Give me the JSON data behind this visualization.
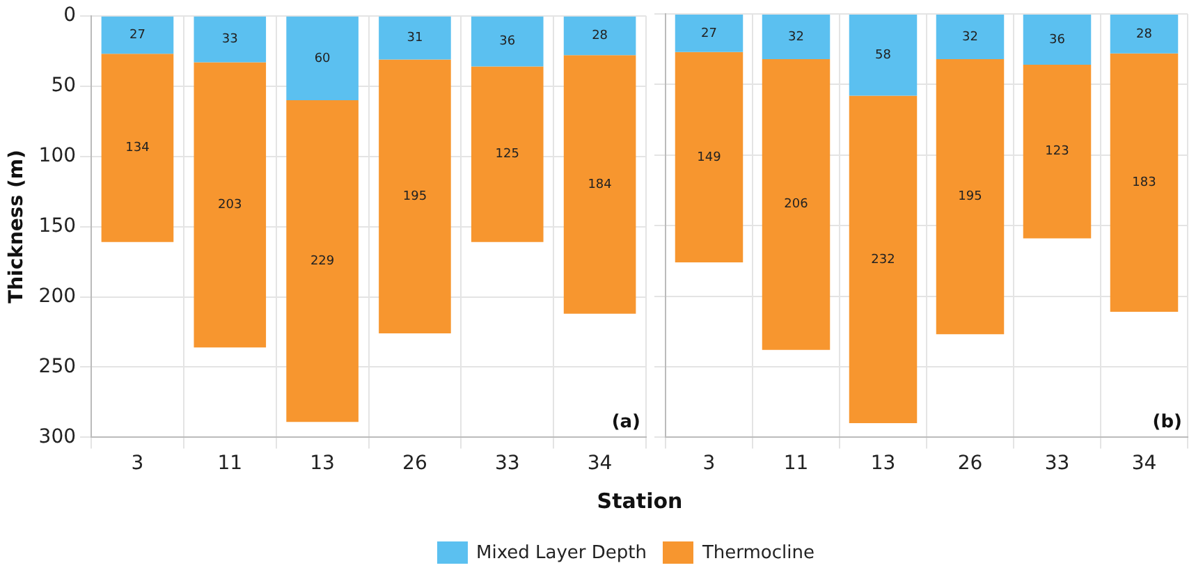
{
  "chart_data": [
    {
      "type": "bar",
      "stacked": true,
      "categories": [
        "3",
        "11",
        "13",
        "26",
        "33",
        "34"
      ],
      "ylabel": "Thickness (m)",
      "xlabel": "Station",
      "ylim": [
        300,
        0
      ],
      "yticks": [
        0,
        50,
        100,
        150,
        200,
        250,
        300
      ],
      "grid": true,
      "data_labels": true,
      "legend": "bottom",
      "annotations": [
        "(a)"
      ],
      "series": [
        {
          "name": "Mixed Layer Depth",
          "color": "#5bc0f0",
          "values": [
            27,
            33,
            60,
            31,
            36,
            28
          ]
        },
        {
          "name": "Thermocline",
          "color": "#f7962f",
          "values": [
            134,
            203,
            229,
            195,
            125,
            184
          ]
        }
      ]
    },
    {
      "type": "bar",
      "stacked": true,
      "categories": [
        "3",
        "11",
        "13",
        "26",
        "33",
        "34"
      ],
      "ylim": [
        300,
        0
      ],
      "yticks": [
        0,
        50,
        100,
        150,
        200,
        250,
        300
      ],
      "tick_labels": "x",
      "grid": true,
      "data_labels": true,
      "annotations": [
        "(b)"
      ],
      "series": [
        {
          "color": "#5bc0f0",
          "values": [
            27,
            32,
            58,
            32,
            36,
            28
          ]
        },
        {
          "color": "#f7962f",
          "values": [
            149,
            206,
            232,
            195,
            123,
            183
          ]
        }
      ]
    }
  ]
}
